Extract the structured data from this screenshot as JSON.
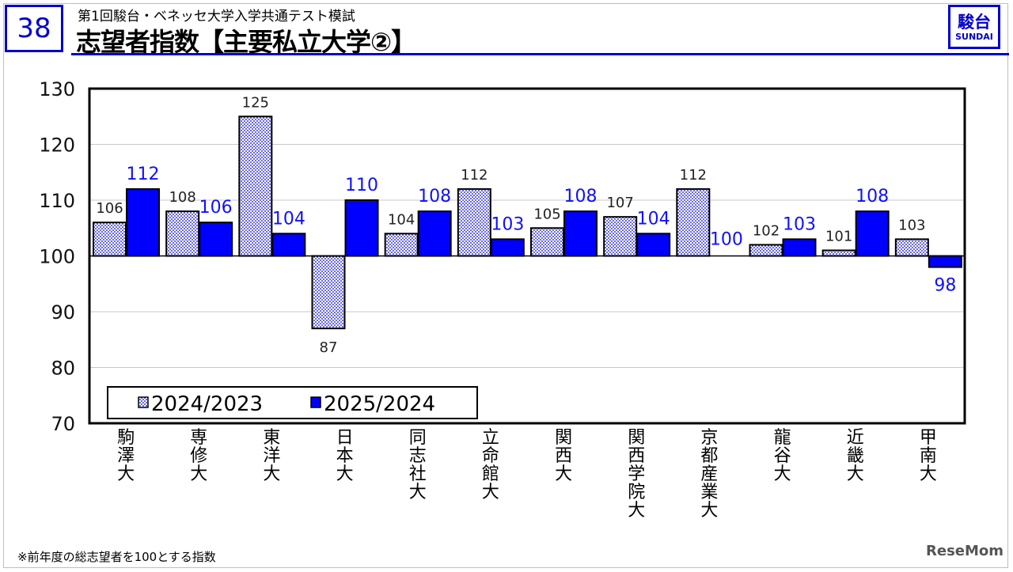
{
  "header": {
    "page_number": "38",
    "subtitle": "第1回駿台・ベネッセ大学入学共通テスト模試",
    "title": "志望者指数【主要私立大学②】",
    "logo_kanji": "駿台",
    "logo_en": "SUNDAI"
  },
  "footnote": "※前年度の総志望者を100とする指数",
  "source_mark": "ReseMom",
  "colors": {
    "accent": "#0000d0",
    "bar2": "#0000ff",
    "bar1_dots": "#0000cc",
    "label1": "#222222",
    "label2": "#1010ff"
  },
  "chart_data": {
    "type": "bar",
    "baseline": 100,
    "ylim": [
      70,
      130
    ],
    "yticks": [
      70,
      80,
      90,
      100,
      110,
      120,
      130
    ],
    "grid": true,
    "legend_position": "bottom-left",
    "categories": [
      "駒澤大",
      "専修大",
      "東洋大",
      "日本大",
      "同志社大",
      "立命館大",
      "関西大",
      "関西学院大",
      "京都産業大",
      "龍谷大",
      "近畿大",
      "甲南大"
    ],
    "series": [
      {
        "name": "2024/2023",
        "values": [
          106,
          108,
          125,
          87,
          104,
          112,
          105,
          107,
          112,
          102,
          101,
          103
        ]
      },
      {
        "name": "2025/2024",
        "values": [
          112,
          106,
          104,
          110,
          108,
          103,
          108,
          104,
          100,
          103,
          108,
          98
        ]
      }
    ]
  }
}
